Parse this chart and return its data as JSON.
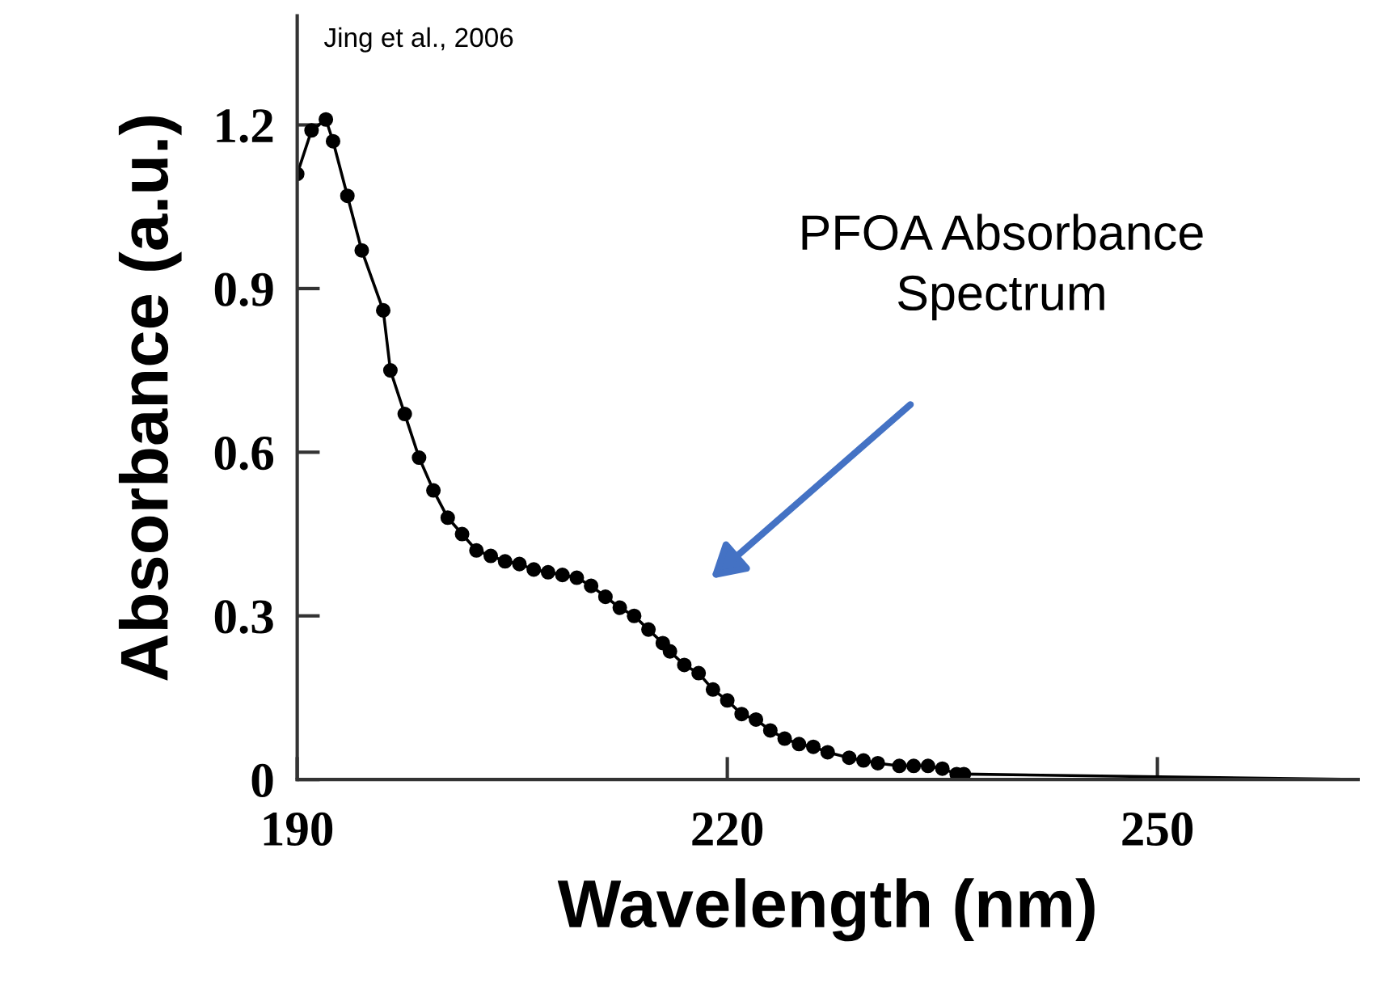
{
  "chart_data": {
    "type": "line",
    "xlabel": "Wavelength (nm)",
    "ylabel": "Absorbance (a.u.)",
    "xlim": [
      190,
      264
    ],
    "ylim": [
      0,
      1.4
    ],
    "xticks": [
      190,
      220,
      250
    ],
    "yticks": [
      0,
      0.3,
      0.6,
      0.9,
      1.2
    ],
    "grid": false,
    "legend": false,
    "series": [
      {
        "color": "#000000",
        "marker": "circle",
        "x": [
          190,
          191,
          192,
          192.5,
          193.5,
          194.5,
          196,
          196.5,
          197.5,
          198.5,
          199.5,
          200.5,
          201.5,
          202.5,
          203.5,
          204.5,
          205.5,
          206.5,
          207.5,
          208.5,
          209.5,
          210.5,
          211.5,
          212.5,
          213.5,
          214.5,
          215.5,
          216,
          217,
          218,
          219,
          220,
          221,
          222,
          223,
          224,
          225,
          226,
          227,
          228.5,
          229.5,
          230.5,
          232,
          233,
          234,
          235,
          236,
          236.5
        ],
        "values": [
          1.11,
          1.19,
          1.21,
          1.17,
          1.07,
          0.97,
          0.86,
          0.75,
          0.67,
          0.59,
          0.53,
          0.48,
          0.45,
          0.42,
          0.41,
          0.4,
          0.395,
          0.385,
          0.38,
          0.375,
          0.37,
          0.355,
          0.335,
          0.315,
          0.3,
          0.275,
          0.25,
          0.235,
          0.21,
          0.195,
          0.165,
          0.145,
          0.12,
          0.11,
          0.09,
          0.075,
          0.065,
          0.06,
          0.05,
          0.04,
          0.035,
          0.03,
          0.025,
          0.025,
          0.025,
          0.02,
          0.01,
          0.01
        ]
      },
      {
        "color": "#000000",
        "marker": "none",
        "x": [
          236.5,
          264
        ],
        "values": [
          0.01,
          0
        ]
      }
    ],
    "annotations": [
      "Jing et al., 2006",
      "PFOA Absorbance\nSpectrum"
    ]
  }
}
